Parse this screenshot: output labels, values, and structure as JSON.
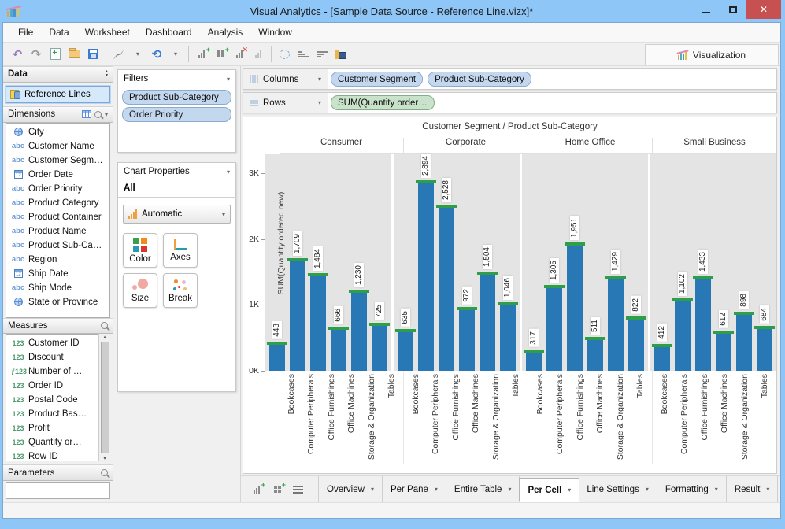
{
  "window": {
    "title": "Visual Analytics - [Sample Data Source - Reference Line.vizx]*"
  },
  "menu": {
    "items": [
      "File",
      "Data",
      "Worksheet",
      "Dashboard",
      "Analysis",
      "Window"
    ]
  },
  "toolbar": {
    "visualization_tab": "Visualization"
  },
  "sidebar": {
    "data_header": "Data",
    "reference_lines": "Reference Lines",
    "dimensions": {
      "header": "Dimensions",
      "items": [
        {
          "icon": "globe",
          "label": "City"
        },
        {
          "icon": "abc",
          "label": "Customer Name"
        },
        {
          "icon": "abc",
          "label": "Customer Segm…"
        },
        {
          "icon": "date",
          "label": "Order Date"
        },
        {
          "icon": "abc",
          "label": "Order Priority"
        },
        {
          "icon": "abc",
          "label": "Product Category"
        },
        {
          "icon": "abc",
          "label": "Product Container"
        },
        {
          "icon": "abc",
          "label": "Product Name"
        },
        {
          "icon": "abc",
          "label": "Product Sub-Ca…"
        },
        {
          "icon": "abc",
          "label": "Region"
        },
        {
          "icon": "date",
          "label": "Ship Date"
        },
        {
          "icon": "abc",
          "label": "Ship Mode"
        },
        {
          "icon": "globe",
          "label": "State or Province"
        }
      ]
    },
    "measures": {
      "header": "Measures",
      "items": [
        {
          "icon": "123",
          "label": "Customer ID"
        },
        {
          "icon": "123",
          "label": "Discount"
        },
        {
          "icon": "f123",
          "label": "Number of …"
        },
        {
          "icon": "123",
          "label": "Order ID"
        },
        {
          "icon": "123",
          "label": "Postal Code"
        },
        {
          "icon": "123",
          "label": "Product Bas…"
        },
        {
          "icon": "123",
          "label": "Profit"
        },
        {
          "icon": "123",
          "label": "Quantity or…"
        },
        {
          "icon": "123",
          "label": "Row ID"
        }
      ]
    },
    "parameters": {
      "header": "Parameters"
    }
  },
  "filters": {
    "header": "Filters",
    "pills": [
      "Product Sub-Category",
      "Order Priority"
    ]
  },
  "chart_properties": {
    "header": "Chart Properties",
    "scope": "All",
    "mark_type": "Automatic",
    "buttons": [
      "Color",
      "Axes",
      "Size",
      "Break"
    ]
  },
  "shelves": {
    "columns_label": "Columns",
    "columns_pills": [
      "Customer Segment",
      "Product Sub-Category"
    ],
    "rows_label": "Rows",
    "rows_pills": [
      "SUM(Quantity order…"
    ]
  },
  "chart_data": {
    "type": "bar",
    "title": "Customer Segment / Product Sub-Category",
    "ylabel": "SUM(Quantity ordered new)",
    "ylim": [
      0,
      3300
    ],
    "yticks": [
      {
        "label": "0K",
        "value": 0
      },
      {
        "label": "1K",
        "value": 1000
      },
      {
        "label": "2K",
        "value": 2000
      },
      {
        "label": "3K",
        "value": 3000
      }
    ],
    "categories": [
      "Bookcases",
      "Computer Peripherals",
      "Office Furnishings",
      "Office Machines",
      "Storage & Organization",
      "Tables"
    ],
    "series": [
      {
        "name": "Consumer",
        "values": [
          443,
          1709,
          1484,
          666,
          1230,
          725
        ]
      },
      {
        "name": "Corporate",
        "values": [
          635,
          2894,
          2528,
          972,
          1504,
          1046
        ]
      },
      {
        "name": "Home Office",
        "values": [
          317,
          1305,
          1951,
          511,
          1429,
          822
        ]
      },
      {
        "name": "Small Business",
        "values": [
          412,
          1102,
          1433,
          612,
          898,
          684
        ]
      }
    ],
    "bar_color": "#2878b5",
    "reference_cap_color": "#2f9e49",
    "grid": false,
    "legend": "none"
  },
  "bottom_tabs": {
    "tabs": [
      "Overview",
      "Per Pane",
      "Entire Table",
      "Per Cell",
      "Line Settings",
      "Formatting",
      "Result"
    ],
    "active": "Per Cell"
  }
}
